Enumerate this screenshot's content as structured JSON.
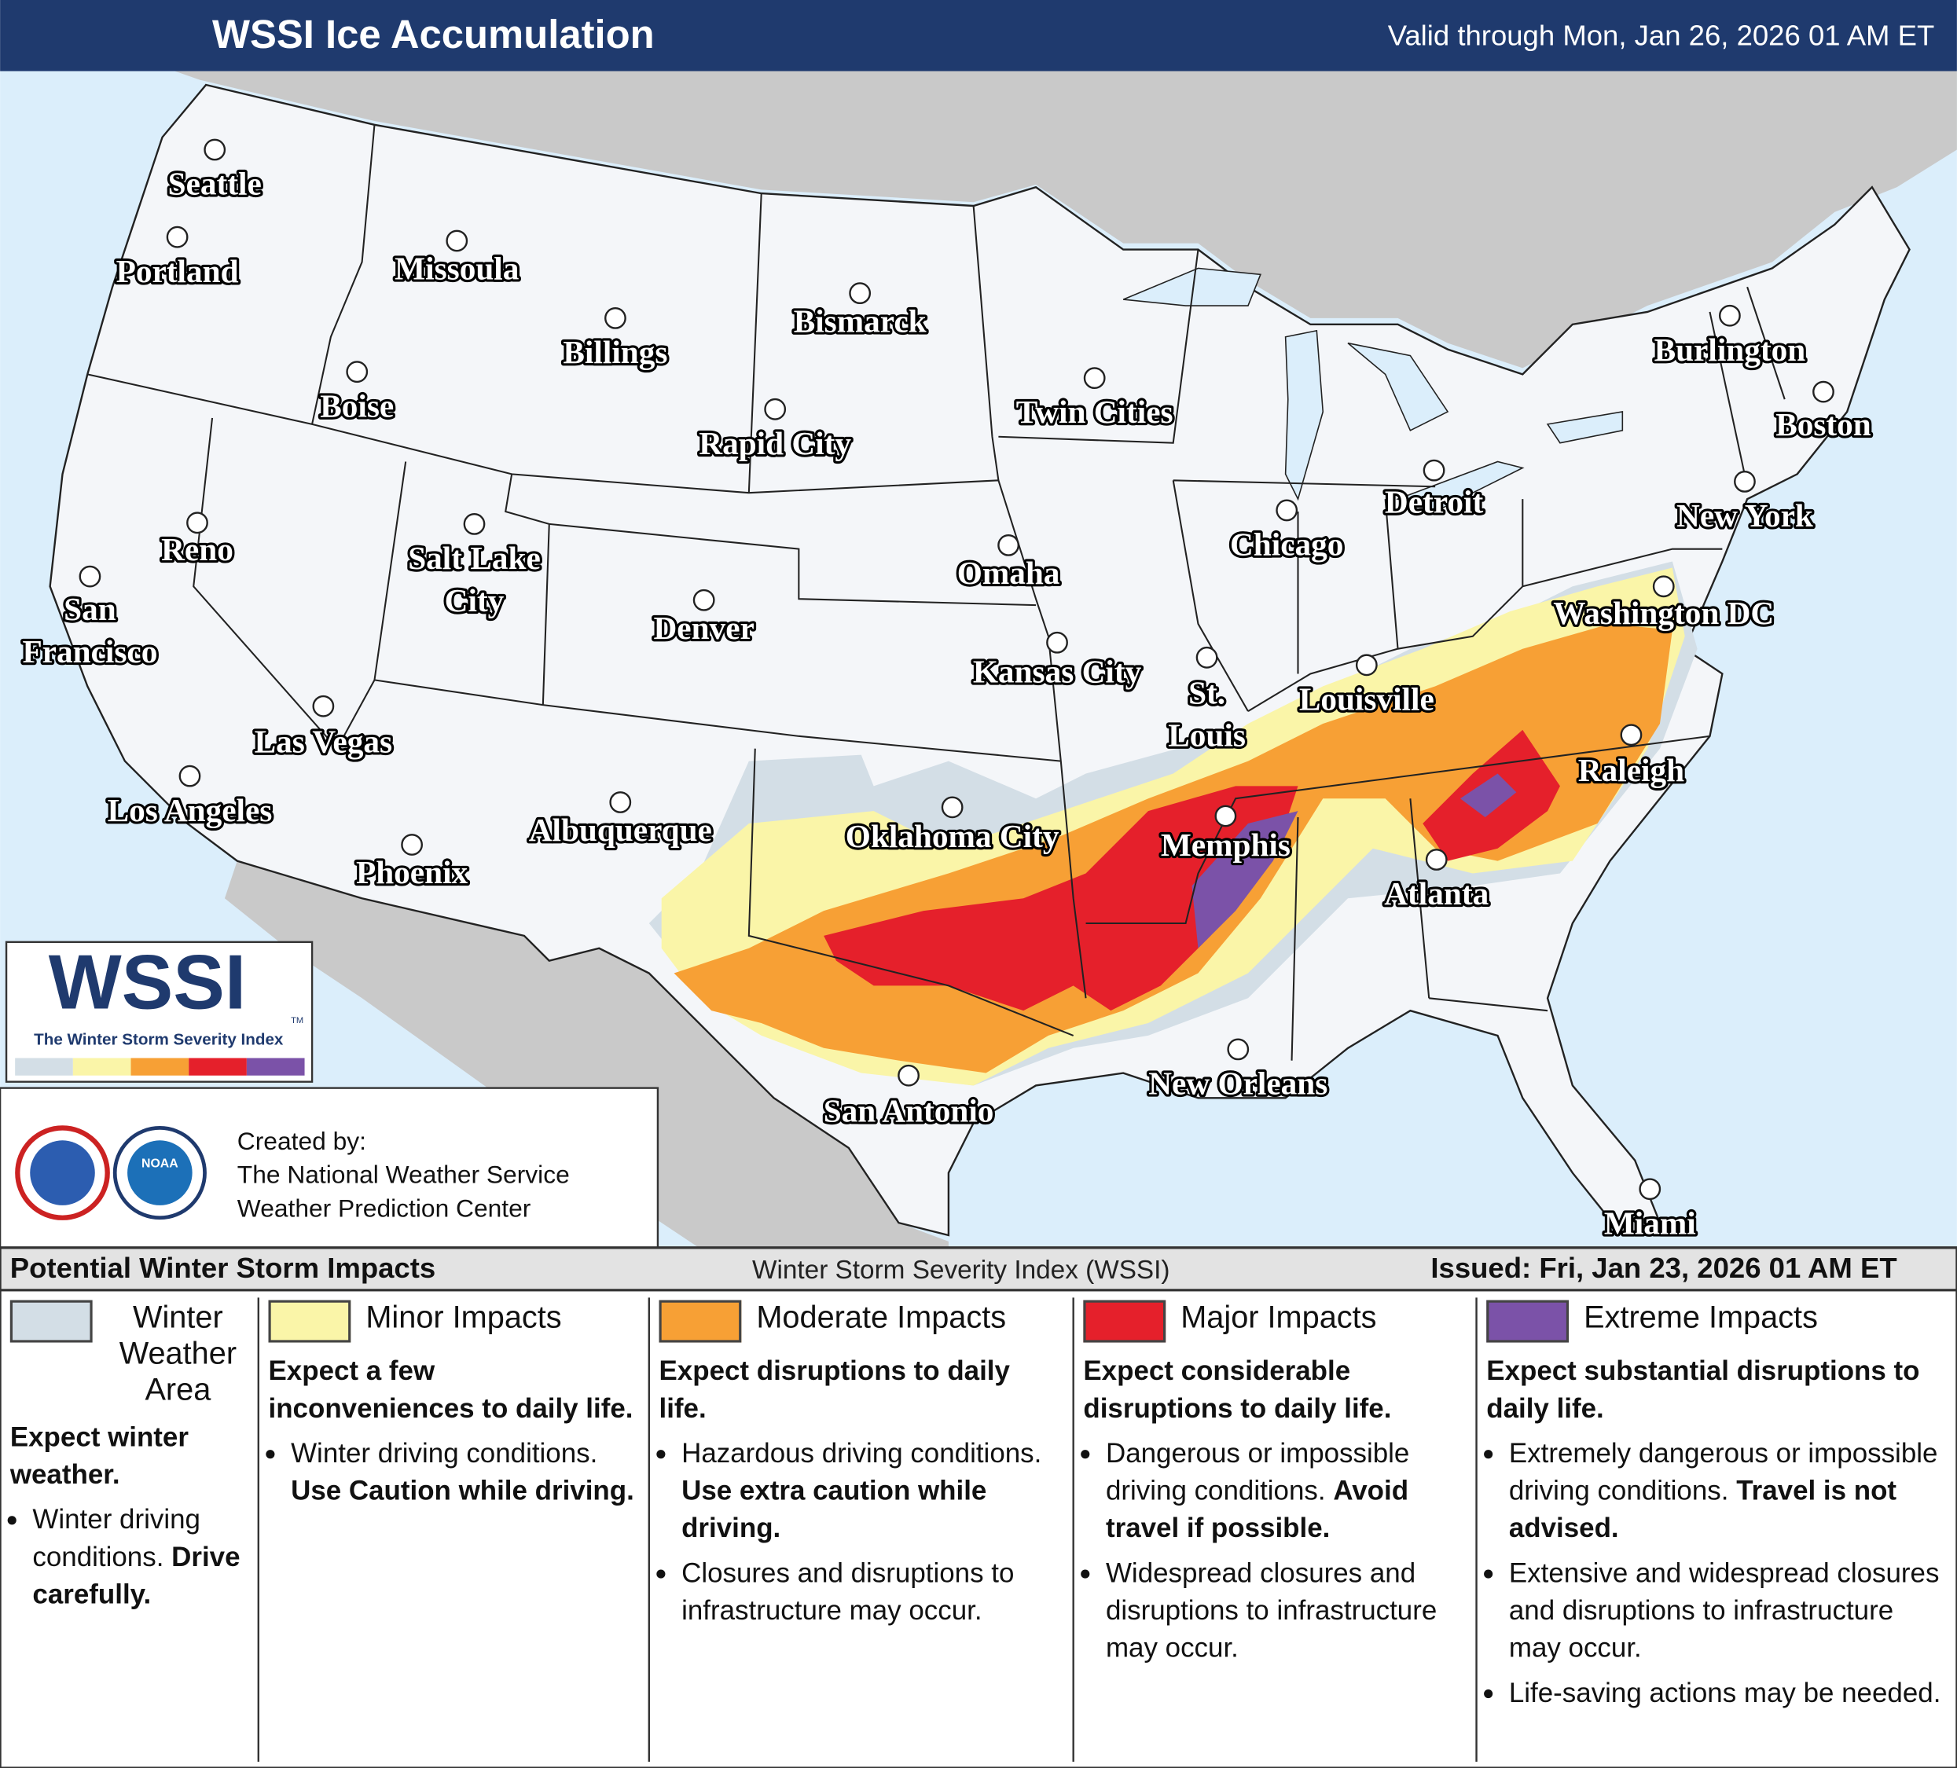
{
  "header": {
    "title": "WSSI Ice Accumulation",
    "valid": "Valid through Mon, Jan 26, 2026 01 AM ET"
  },
  "cities": [
    {
      "label": [
        "Seattle"
      ]
    },
    {
      "label": [
        "Portland"
      ]
    },
    {
      "label": [
        "Missoula"
      ]
    },
    {
      "label": [
        "Billings"
      ]
    },
    {
      "label": [
        "Bismarck"
      ]
    },
    {
      "label": [
        "Boise"
      ]
    },
    {
      "label": [
        "Rapid City"
      ]
    },
    {
      "label": [
        "Twin Cities"
      ]
    },
    {
      "label": [
        "Burlington"
      ]
    },
    {
      "label": [
        "Boston"
      ]
    },
    {
      "label": [
        "Reno"
      ]
    },
    {
      "label": [
        "Salt Lake",
        "City"
      ]
    },
    {
      "label": [
        "Denver"
      ]
    },
    {
      "label": [
        "Omaha"
      ]
    },
    {
      "label": [
        "Chicago"
      ]
    },
    {
      "label": [
        "Detroit"
      ]
    },
    {
      "label": [
        "New York"
      ]
    },
    {
      "label": [
        "San",
        "Francisco"
      ]
    },
    {
      "label": [
        "Washington DC"
      ]
    },
    {
      "label": [
        "Kansas City"
      ]
    },
    {
      "label": [
        "St.",
        "Louis"
      ]
    },
    {
      "label": [
        "Louisville"
      ]
    },
    {
      "label": [
        "Las Vegas"
      ]
    },
    {
      "label": [
        "Los Angeles"
      ]
    },
    {
      "label": [
        "Raleigh"
      ]
    },
    {
      "label": [
        "Oklahoma City"
      ]
    },
    {
      "label": [
        "Memphis"
      ]
    },
    {
      "label": [
        "Albuquerque"
      ]
    },
    {
      "label": [
        "Phoenix"
      ]
    },
    {
      "label": [
        "Atlanta"
      ]
    },
    {
      "label": [
        "New Orleans"
      ]
    },
    {
      "label": [
        "San Antonio"
      ]
    },
    {
      "label": [
        "Miami"
      ]
    }
  ],
  "logo": {
    "text": "WSSI",
    "tm": "TM",
    "subtitle": "The Winter Storm Severity Index"
  },
  "credits": {
    "created_by": "Created by:",
    "lines": [
      "The National Weather Service",
      "Weather Prediction Center"
    ],
    "noaa": "NOAA"
  },
  "legend": {
    "title": "Potential Winter Storm Impacts",
    "index_name": "Winter Storm Severity Index (WSSI)",
    "issued": "Issued: Fri, Jan 23, 2026 01 AM ET",
    "categories": [
      {
        "name": "Winter Weather Area",
        "color": "#d3dee6",
        "summary": "Expect winter weather.",
        "bullets": [
          {
            "text": "Winter driving conditions.",
            "bold": "Drive carefully."
          }
        ]
      },
      {
        "name": "Minor Impacts",
        "color": "#faf5a8",
        "summary": "Expect a few inconveniences to daily life.",
        "bullets": [
          {
            "text": "Winter driving conditions.",
            "bold": "Use Caution while driving."
          }
        ]
      },
      {
        "name": "Moderate Impacts",
        "color": "#f7a035",
        "summary": "Expect disruptions to daily life.",
        "bullets": [
          {
            "text": "Hazardous driving conditions.",
            "bold": "Use extra caution while driving."
          },
          {
            "text": "Closures and disruptions to infrastructure may occur."
          }
        ]
      },
      {
        "name": "Major Impacts",
        "color": "#e5202b",
        "summary": "Expect considerable disruptions to daily life.",
        "bullets": [
          {
            "text": "Dangerous or impossible driving conditions.",
            "bold": "Avoid travel if possible."
          },
          {
            "text": "Widespread closures and disruptions to infrastructure may occur."
          }
        ]
      },
      {
        "name": "Extreme Impacts",
        "color": "#7b52a8",
        "summary": "Expect substantial disruptions to daily life.",
        "bullets": [
          {
            "text": "Extremely dangerous or impossible driving conditions.",
            "bold": "Travel is not advised."
          },
          {
            "text": "Extensive and widespread closures and disruptions to infrastructure may occur."
          },
          {
            "text": "Life-saving actions may be needed."
          }
        ]
      }
    ]
  }
}
